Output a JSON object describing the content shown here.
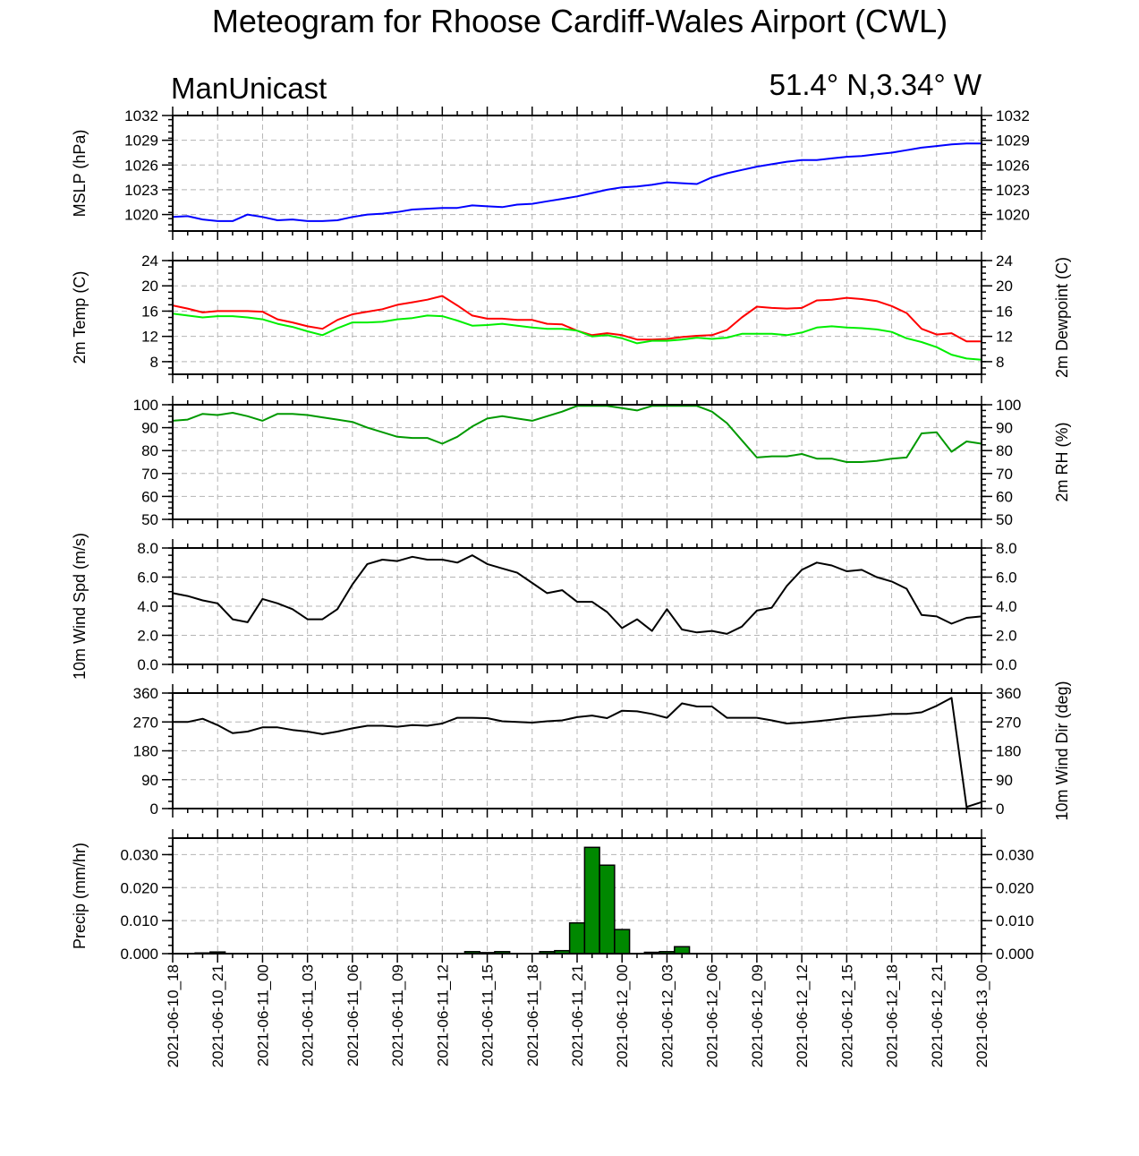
{
  "title": "Meteogram for Rhoose Cardiff-Wales Airport (CWL)",
  "left_label": "ManUnicast",
  "right_label": "51.4° N,3.34° W",
  "colors": {
    "mslp": "#0000ff",
    "temp": "#ff0000",
    "dewpoint": "#00ee00",
    "rh": "#009900",
    "wind": "#000000",
    "precip_fill": "#008800"
  },
  "chart_data": {
    "type": "line",
    "x": [
      "2021-06-10_18",
      "2021-06-10_19",
      "2021-06-10_20",
      "2021-06-10_21",
      "2021-06-10_22",
      "2021-06-10_23",
      "2021-06-11_00",
      "2021-06-11_01",
      "2021-06-11_02",
      "2021-06-11_03",
      "2021-06-11_04",
      "2021-06-11_05",
      "2021-06-11_06",
      "2021-06-11_07",
      "2021-06-11_08",
      "2021-06-11_09",
      "2021-06-11_10",
      "2021-06-11_11",
      "2021-06-11_12",
      "2021-06-11_13",
      "2021-06-11_14",
      "2021-06-11_15",
      "2021-06-11_16",
      "2021-06-11_17",
      "2021-06-11_18",
      "2021-06-11_19",
      "2021-06-11_20",
      "2021-06-11_21",
      "2021-06-11_22",
      "2021-06-11_23",
      "2021-06-12_00",
      "2021-06-12_01",
      "2021-06-12_02",
      "2021-06-12_03",
      "2021-06-12_04",
      "2021-06-12_05",
      "2021-06-12_06",
      "2021-06-12_07",
      "2021-06-12_08",
      "2021-06-12_09",
      "2021-06-12_10",
      "2021-06-12_11",
      "2021-06-12_12",
      "2021-06-12_13",
      "2021-06-12_14",
      "2021-06-12_15",
      "2021-06-12_16",
      "2021-06-12_17",
      "2021-06-12_18",
      "2021-06-12_19",
      "2021-06-12_20",
      "2021-06-12_21",
      "2021-06-12_22",
      "2021-06-12_23",
      "2021-06-13_00"
    ],
    "x_tick_labels": [
      "2021-06-10_18",
      "2021-06-10_21",
      "2021-06-11_00",
      "2021-06-11_03",
      "2021-06-11_06",
      "2021-06-11_09",
      "2021-06-11_12",
      "2021-06-11_15",
      "2021-06-11_18",
      "2021-06-11_21",
      "2021-06-12_00",
      "2021-06-12_03",
      "2021-06-12_06",
      "2021-06-12_09",
      "2021-06-12_12",
      "2021-06-12_15",
      "2021-06-12_18",
      "2021-06-12_21",
      "2021-06-13_00"
    ],
    "panels": [
      {
        "id": "mslp",
        "ylabel": "MSLP (hPa)",
        "right_ylabel": "",
        "ylim": [
          1018,
          1032
        ],
        "yticks": [
          1020,
          1023,
          1026,
          1029,
          1032
        ],
        "tick_labels": [
          "1020",
          "1023",
          "1026",
          "1029",
          "1032"
        ],
        "right_ticks": true,
        "series": [
          {
            "color": "#0000ff",
            "values": [
              1019.7,
              1019.8,
              1019.4,
              1019.2,
              1019.2,
              1020.0,
              1019.7,
              1019.3,
              1019.4,
              1019.2,
              1019.2,
              1019.3,
              1019.7,
              1020.0,
              1020.1,
              1020.3,
              1020.6,
              1020.7,
              1020.8,
              1020.8,
              1021.1,
              1021.0,
              1020.9,
              1021.2,
              1021.3,
              1021.6,
              1021.9,
              1022.2,
              1022.6,
              1023.0,
              1023.3,
              1023.4,
              1023.6,
              1023.9,
              1023.8,
              1023.7,
              1024.5,
              1025.0,
              1025.4,
              1025.8,
              1026.1,
              1026.4,
              1026.6,
              1026.6,
              1026.8,
              1027.0,
              1027.1,
              1027.3,
              1027.5,
              1027.8,
              1028.1,
              1028.3,
              1028.5,
              1028.6,
              1028.6
            ]
          }
        ]
      },
      {
        "id": "temp",
        "ylabel": "2m Temp (C)",
        "right_ylabel": "2m Dewpoint (C)",
        "ylim": [
          6,
          24
        ],
        "yticks": [
          8,
          12,
          16,
          20,
          24
        ],
        "tick_labels": [
          "8",
          "12",
          "16",
          "20",
          "24"
        ],
        "right_ticks": true,
        "series": [
          {
            "color": "#ff0000",
            "values": [
              16.9,
              16.4,
              15.8,
              16.0,
              16.0,
              16.0,
              15.9,
              14.7,
              14.2,
              13.6,
              13.2,
              14.6,
              15.5,
              15.9,
              16.3,
              17.0,
              17.4,
              17.8,
              18.4,
              16.9,
              15.3,
              14.8,
              14.8,
              14.6,
              14.6,
              14.0,
              13.9,
              12.9,
              12.2,
              12.5,
              12.2,
              11.5,
              11.5,
              11.6,
              11.9,
              12.1,
              12.2,
              13.0,
              15.0,
              16.7,
              16.5,
              16.4,
              16.5,
              17.7,
              17.8,
              18.1,
              17.9,
              17.6,
              16.8,
              15.7,
              13.2,
              12.3,
              12.5,
              11.2,
              11.2
            ]
          },
          {
            "color": "#00ee00",
            "values": [
              15.6,
              15.3,
              15.0,
              15.2,
              15.2,
              15.0,
              14.7,
              14.0,
              13.5,
              12.8,
              12.2,
              13.3,
              14.2,
              14.2,
              14.3,
              14.7,
              14.9,
              15.3,
              15.2,
              14.5,
              13.7,
              13.8,
              14.0,
              13.7,
              13.4,
              13.2,
              13.2,
              12.9,
              12.0,
              12.2,
              11.7,
              10.9,
              11.3,
              11.3,
              11.5,
              11.8,
              11.6,
              11.8,
              12.4,
              12.4,
              12.4,
              12.2,
              12.6,
              13.4,
              13.6,
              13.4,
              13.3,
              13.1,
              12.7,
              11.7,
              11.1,
              10.3,
              9.1,
              8.5,
              8.3
            ]
          }
        ]
      },
      {
        "id": "rh",
        "ylabel": "",
        "right_ylabel": "2m RH (%)",
        "ylim": [
          50,
          100
        ],
        "yticks": [
          50,
          60,
          70,
          80,
          90,
          100
        ],
        "tick_labels": [
          "50",
          "60",
          "70",
          "80",
          "90",
          "100"
        ],
        "right_ticks": true,
        "series": [
          {
            "color": "#009900",
            "values": [
              93,
              93.5,
              96,
              95.5,
              96.5,
              95,
              93,
              96,
              96,
              95.5,
              94.5,
              93.5,
              92.5,
              90,
              88,
              86,
              85.5,
              85.5,
              83,
              86,
              90.5,
              94,
              95,
              94,
              93,
              95,
              97,
              99.5,
              99.5,
              99.5,
              98.5,
              97.5,
              99.5,
              99.5,
              99.5,
              99.5,
              97,
              92,
              84.5,
              77,
              77.5,
              77.5,
              78.5,
              76.5,
              76.5,
              75,
              75,
              75.5,
              76.5,
              77,
              87.5,
              88,
              79.5,
              84,
              83
            ]
          }
        ]
      },
      {
        "id": "wspd",
        "ylabel": "10m Wind Spd (m/s)",
        "right_ylabel": "",
        "ylim": [
          0,
          8
        ],
        "yticks": [
          0,
          2,
          4,
          6,
          8
        ],
        "tick_labels": [
          "0.0",
          "2.0",
          "4.0",
          "6.0",
          "8.0"
        ],
        "right_ticks": true,
        "series": [
          {
            "color": "#000000",
            "values": [
              4.9,
              4.7,
              4.4,
              4.2,
              3.1,
              2.9,
              4.5,
              4.2,
              3.8,
              3.1,
              3.1,
              3.8,
              5.5,
              6.9,
              7.2,
              7.1,
              7.4,
              7.2,
              7.2,
              7.0,
              7.5,
              6.9,
              6.6,
              6.3,
              5.6,
              4.9,
              5.1,
              4.3,
              4.3,
              3.6,
              2.5,
              3.1,
              2.3,
              3.8,
              2.4,
              2.2,
              2.3,
              2.1,
              2.6,
              3.7,
              3.9,
              5.4,
              6.5,
              7.0,
              6.8,
              6.4,
              6.5,
              6.0,
              5.7,
              5.2,
              3.4,
              3.3,
              2.8,
              3.2,
              3.3
            ]
          }
        ]
      },
      {
        "id": "wdir",
        "ylabel": "",
        "right_ylabel": "10m Wind Dir (deg)",
        "ylim": [
          0,
          360
        ],
        "yticks": [
          0,
          90,
          180,
          270,
          360
        ],
        "tick_labels": [
          "0",
          "90",
          "180",
          "270",
          "360"
        ],
        "right_ticks": true,
        "series": [
          {
            "color": "#000000",
            "values": [
              270,
              270,
              280,
              260,
              235,
              240,
              253,
              253,
              245,
              240,
              232,
              240,
              250,
              258,
              258,
              255,
              260,
              258,
              265,
              283,
              283,
              282,
              272,
              270,
              268,
              272,
              275,
              285,
              290,
              282,
              305,
              303,
              295,
              283,
              328,
              318,
              318,
              283,
              283,
              283,
              275,
              265,
              268,
              272,
              277,
              283,
              287,
              290,
              295,
              295,
              300,
              320,
              345,
              5,
              20
            ]
          }
        ]
      },
      {
        "id": "precip",
        "ylabel": "Precip (mm/hr)",
        "right_ylabel": "",
        "ylim": [
          0,
          0.035
        ],
        "yticks": [
          0,
          0.01,
          0.02,
          0.03
        ],
        "tick_labels": [
          "0.000",
          "0.010",
          "0.020",
          "0.030"
        ],
        "right_ticks": true,
        "bars": {
          "color": "#008800",
          "values": [
            0,
            0,
            0.0002,
            0.0005,
            0,
            0,
            0,
            0,
            0,
            0,
            0,
            0,
            0,
            0,
            0,
            0,
            0,
            0,
            0,
            0,
            0.0006,
            0.0003,
            0.0006,
            0,
            0,
            0.0006,
            0.0009,
            0.0093,
            0.0322,
            0.0268,
            0.0073,
            0,
            0.0004,
            0.0006,
            0.0021,
            0,
            0,
            0,
            0,
            0,
            0,
            0,
            0,
            0,
            0,
            0,
            0,
            0,
            0,
            0,
            0,
            0,
            0,
            0
          ]
        }
      }
    ]
  }
}
